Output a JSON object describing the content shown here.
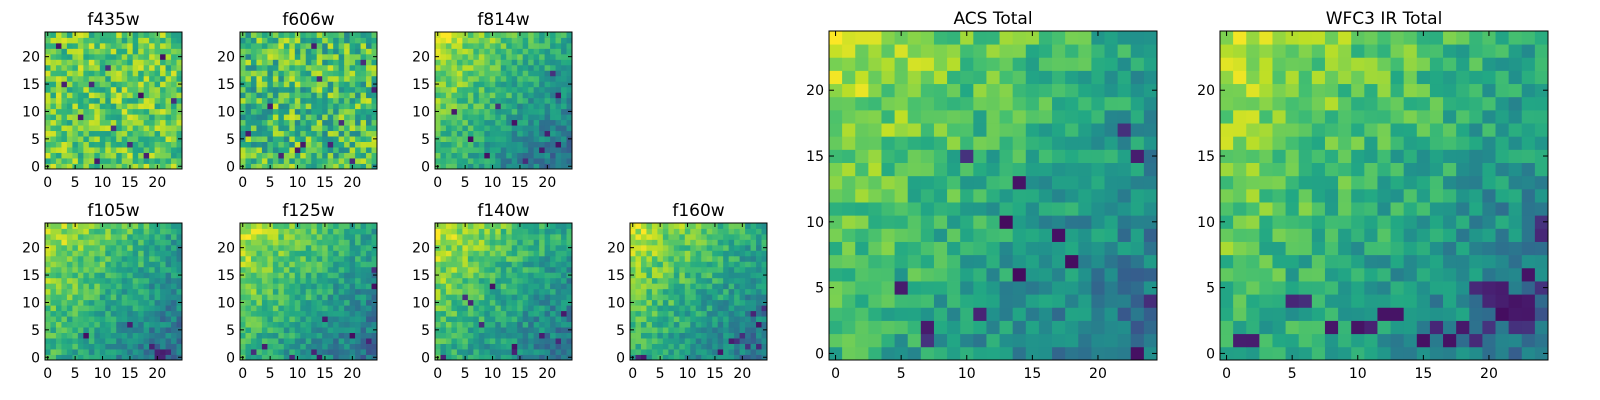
{
  "chart_data": [
    {
      "type": "heatmap",
      "title": "f435w",
      "x_ticks": [
        0,
        5,
        10,
        15,
        20
      ],
      "y_ticks": [
        0,
        5,
        10,
        15,
        20
      ],
      "xlim": [
        -0.5,
        24.5
      ],
      "ylim": [
        -0.5,
        24.5
      ],
      "origin": "lower",
      "colormap": "viridis",
      "trend": "noisy-uniform-high",
      "low_pixels": [
        [
          3,
          15
        ],
        [
          8,
          15
        ],
        [
          11,
          18
        ],
        [
          15,
          4
        ],
        [
          21,
          20
        ],
        [
          6,
          9
        ],
        [
          18,
          2
        ],
        [
          12,
          7
        ],
        [
          2,
          22
        ],
        [
          23,
          12
        ],
        [
          9,
          1
        ],
        [
          17,
          13
        ]
      ]
    },
    {
      "type": "heatmap",
      "title": "f606w",
      "x_ticks": [
        0,
        5,
        10,
        15,
        20
      ],
      "y_ticks": [
        0,
        5,
        10,
        15,
        20
      ],
      "xlim": [
        -0.5,
        24.5
      ],
      "ylim": [
        -0.5,
        24.5
      ],
      "origin": "lower",
      "colormap": "viridis",
      "trend": "noisy-uniform",
      "low_pixels": [
        [
          10,
          3
        ],
        [
          11,
          4
        ],
        [
          20,
          1
        ],
        [
          16,
          4
        ],
        [
          14,
          16
        ],
        [
          5,
          11
        ],
        [
          22,
          19
        ],
        [
          7,
          2
        ],
        [
          18,
          8
        ],
        [
          1,
          6
        ],
        [
          13,
          22
        ],
        [
          24,
          14
        ]
      ]
    },
    {
      "type": "heatmap",
      "title": "f814w",
      "x_ticks": [
        0,
        5,
        10,
        15,
        20
      ],
      "y_ticks": [
        0,
        5,
        10,
        15,
        20
      ],
      "xlim": [
        -0.5,
        24.5
      ],
      "ylim": [
        -0.5,
        24.5
      ],
      "origin": "lower",
      "colormap": "viridis",
      "trend": "top-left-bright",
      "low_pixels": [
        [
          19,
          3
        ],
        [
          20,
          6
        ],
        [
          22,
          13
        ],
        [
          22,
          4
        ],
        [
          9,
          2
        ],
        [
          14,
          8
        ],
        [
          3,
          10
        ],
        [
          16,
          1
        ],
        [
          21,
          17
        ],
        [
          6,
          5
        ],
        [
          11,
          11
        ]
      ]
    },
    {
      "type": "heatmap",
      "title": "f105w",
      "x_ticks": [
        0,
        5,
        10,
        15,
        20
      ],
      "y_ticks": [
        0,
        5,
        10,
        15,
        20
      ],
      "xlim": [
        -0.5,
        24.5
      ],
      "ylim": [
        -0.5,
        24.5
      ],
      "origin": "lower",
      "colormap": "viridis",
      "trend": "top-left-bright",
      "low_pixels": [
        [
          20,
          1
        ],
        [
          21,
          1
        ],
        [
          20,
          0
        ],
        [
          21,
          0
        ],
        [
          22,
          1
        ],
        [
          19,
          2
        ],
        [
          7,
          4
        ],
        [
          15,
          6
        ]
      ]
    },
    {
      "type": "heatmap",
      "title": "f125w",
      "x_ticks": [
        0,
        5,
        10,
        15,
        20
      ],
      "y_ticks": [
        0,
        5,
        10,
        15,
        20
      ],
      "xlim": [
        -0.5,
        24.5
      ],
      "ylim": [
        -0.5,
        24.5
      ],
      "origin": "lower",
      "colormap": "viridis",
      "trend": "top-left-bright",
      "low_pixels": [
        [
          13,
          1
        ],
        [
          14,
          0
        ],
        [
          24,
          16
        ],
        [
          24,
          13
        ],
        [
          4,
          2
        ],
        [
          15,
          7
        ],
        [
          20,
          4
        ],
        [
          23,
          3
        ],
        [
          9,
          0
        ],
        [
          2,
          1
        ]
      ]
    },
    {
      "type": "heatmap",
      "title": "f140w",
      "x_ticks": [
        0,
        5,
        10,
        15,
        20
      ],
      "y_ticks": [
        0,
        5,
        10,
        15,
        20
      ],
      "xlim": [
        -0.5,
        24.5
      ],
      "ylim": [
        -0.5,
        24.5
      ],
      "origin": "lower",
      "colormap": "viridis",
      "trend": "top-left-bright",
      "low_pixels": [
        [
          5,
          11
        ],
        [
          6,
          10
        ],
        [
          14,
          2
        ],
        [
          14,
          1
        ],
        [
          19,
          4
        ],
        [
          22,
          3
        ],
        [
          23,
          8
        ],
        [
          1,
          0
        ],
        [
          10,
          13
        ],
        [
          8,
          6
        ]
      ]
    },
    {
      "type": "heatmap",
      "title": "f160w",
      "x_ticks": [
        0,
        5,
        10,
        15,
        20
      ],
      "y_ticks": [
        0,
        5,
        10,
        15,
        20
      ],
      "xlim": [
        -0.5,
        24.5
      ],
      "ylim": [
        -0.5,
        24.5
      ],
      "origin": "lower",
      "colormap": "viridis",
      "trend": "top-left-bright",
      "low_pixels": [
        [
          18,
          3
        ],
        [
          19,
          3
        ],
        [
          20,
          4
        ],
        [
          22,
          8
        ],
        [
          23,
          6
        ],
        [
          24,
          9
        ],
        [
          21,
          2
        ],
        [
          1,
          0
        ],
        [
          2,
          0
        ],
        [
          16,
          1
        ],
        [
          23,
          2
        ]
      ]
    },
    {
      "type": "heatmap",
      "title": "ACS Total",
      "x_ticks": [
        0,
        5,
        10,
        15,
        20
      ],
      "y_ticks": [
        0,
        5,
        10,
        15,
        20
      ],
      "xlim": [
        -0.5,
        24.5
      ],
      "ylim": [
        -0.5,
        24.5
      ],
      "origin": "lower",
      "colormap": "viridis",
      "trend": "top-left-bright",
      "low_pixels": [
        [
          10,
          15
        ],
        [
          14,
          13
        ],
        [
          7,
          2
        ],
        [
          18,
          7
        ],
        [
          23,
          15
        ],
        [
          24,
          4
        ],
        [
          14,
          6
        ],
        [
          17,
          9
        ],
        [
          7,
          1
        ],
        [
          11,
          3
        ],
        [
          23,
          0
        ],
        [
          22,
          17
        ],
        [
          5,
          5
        ],
        [
          13,
          10
        ]
      ]
    },
    {
      "type": "heatmap",
      "title": "WFC3 IR Total",
      "x_ticks": [
        0,
        5,
        10,
        15,
        20
      ],
      "y_ticks": [
        0,
        5,
        10,
        15,
        20
      ],
      "xlim": [
        -0.5,
        24.5
      ],
      "ylim": [
        -0.5,
        24.5
      ],
      "origin": "lower",
      "colormap": "viridis",
      "trend": "top-left-bright",
      "low_pixels": [
        [
          19,
          5
        ],
        [
          20,
          5
        ],
        [
          20,
          4
        ],
        [
          21,
          5
        ],
        [
          21,
          4
        ],
        [
          22,
          3
        ],
        [
          22,
          4
        ],
        [
          21,
          3
        ],
        [
          23,
          4
        ],
        [
          24,
          5
        ],
        [
          18,
          2
        ],
        [
          19,
          1
        ],
        [
          20,
          2
        ],
        [
          22,
          2
        ],
        [
          23,
          3
        ],
        [
          12,
          3
        ],
        [
          13,
          3
        ],
        [
          6,
          4
        ],
        [
          5,
          4
        ],
        [
          23,
          6
        ],
        [
          24,
          10
        ],
        [
          24,
          9
        ],
        [
          17,
          1
        ],
        [
          1,
          1
        ],
        [
          2,
          1
        ],
        [
          11,
          2
        ],
        [
          10,
          2
        ],
        [
          8,
          2
        ],
        [
          15,
          1
        ],
        [
          23,
          2
        ],
        [
          16,
          2
        ]
      ]
    }
  ]
}
